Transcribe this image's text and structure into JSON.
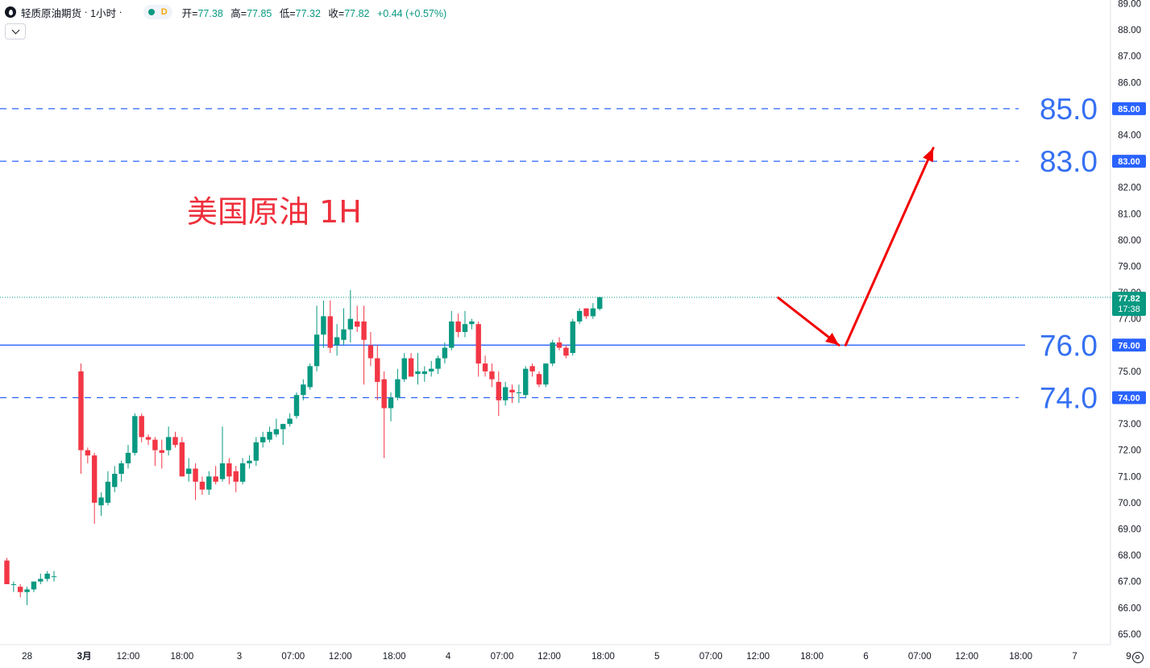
{
  "legend": {
    "symbol": "轻质原油期货",
    "interval": "1小时",
    "mode_label": "D",
    "open_label": "开=",
    "open_value": "77.38",
    "high_label": "高=",
    "high_value": "77.85",
    "low_label": "低=",
    "low_value": "77.32",
    "close_label": "收=",
    "close_value": "77.82",
    "change": "+0.44 (+0.57%)"
  },
  "colors": {
    "up": "#089981",
    "down": "#f23645",
    "level_line": "#2962ff",
    "level_text": "#3570f2",
    "annotation": "#ee2f3c",
    "arrow": "#f20000"
  },
  "icons": {
    "legend_toggle": "chevron-down-icon",
    "axis_settings": "settings-icon",
    "symbol": "oil-drop-icon"
  },
  "chart_data": {
    "type": "candlestick",
    "annotation": "美国原油 1H",
    "y_axis": {
      "ticks": [
        "65.00",
        "66.00",
        "67.00",
        "68.00",
        "69.00",
        "70.00",
        "71.00",
        "72.00",
        "73.00",
        "74.00",
        "75.00",
        "76.00",
        "77.00",
        "78.00",
        "79.00",
        "80.00",
        "81.00",
        "82.00",
        "83.00",
        "84.00",
        "85.00",
        "86.00",
        "87.00",
        "88.00",
        "89.00"
      ],
      "range": [
        64.6,
        89.1
      ]
    },
    "x_axis": {
      "ticks": [
        {
          "label": "28",
          "idx": 3
        },
        {
          "label": "3月",
          "idx": 11.5,
          "bold": true
        },
        {
          "label": "12:00",
          "idx": 18
        },
        {
          "label": "18:00",
          "idx": 26
        },
        {
          "label": "3",
          "idx": 34.5
        },
        {
          "label": "07:00",
          "idx": 42.5
        },
        {
          "label": "12:00",
          "idx": 49.5
        },
        {
          "label": "18:00",
          "idx": 57.5
        },
        {
          "label": "4",
          "idx": 65.5
        },
        {
          "label": "07:00",
          "idx": 73.5
        },
        {
          "label": "12:00",
          "idx": 80.5
        },
        {
          "label": "18:00",
          "idx": 88.5
        },
        {
          "label": "5",
          "idx": 96.5
        },
        {
          "label": "07:00",
          "idx": 104.5
        },
        {
          "label": "12:00",
          "idx": 111.5
        },
        {
          "label": "18:00",
          "idx": 119.5
        },
        {
          "label": "6",
          "idx": 127.5
        },
        {
          "label": "07:00",
          "idx": 135.5
        },
        {
          "label": "12:00",
          "idx": 142.5
        },
        {
          "label": "18:00",
          "idx": 150.5
        },
        {
          "label": "7",
          "idx": 158.5
        },
        {
          "label": "9",
          "idx": 166.5
        }
      ]
    },
    "levels": [
      {
        "value": 85.0,
        "label": "85.0",
        "tag": "85.00",
        "style": "dashed"
      },
      {
        "value": 83.0,
        "label": "83.0",
        "tag": "83.00",
        "style": "dashed"
      },
      {
        "value": 76.0,
        "label": "76.0",
        "tag": "76.00",
        "style": "solid"
      },
      {
        "value": 74.0,
        "label": "74.0",
        "tag": "74.00",
        "style": "dashed"
      }
    ],
    "last_price": {
      "value": 77.82,
      "label": "77.82",
      "countdown": "17:38"
    },
    "arrows": [
      {
        "from": [
          114.5,
          77.8
        ],
        "to": [
          123.5,
          76.0
        ]
      },
      {
        "from": [
          124.5,
          76.0
        ],
        "to": [
          137.5,
          83.5
        ]
      }
    ],
    "candles": [
      {
        "i": 0,
        "o": 67.8,
        "h": 67.9,
        "l": 66.9,
        "c": 66.9
      },
      {
        "i": 1,
        "o": 66.9,
        "h": 67.0,
        "l": 66.6,
        "c": 66.9
      },
      {
        "i": 2,
        "o": 66.8,
        "h": 66.9,
        "l": 66.4,
        "c": 66.6
      },
      {
        "i": 3,
        "o": 66.6,
        "h": 66.8,
        "l": 66.1,
        "c": 66.7
      },
      {
        "i": 4,
        "o": 66.7,
        "h": 67.0,
        "l": 66.6,
        "c": 67.0
      },
      {
        "i": 5,
        "o": 67.0,
        "h": 67.3,
        "l": 66.9,
        "c": 67.1
      },
      {
        "i": 6,
        "o": 67.1,
        "h": 67.4,
        "l": 67.0,
        "c": 67.3
      },
      {
        "i": 7,
        "o": 67.2,
        "h": 67.4,
        "l": 67.0,
        "c": 67.2
      },
      {
        "i": 11,
        "o": 75.0,
        "h": 75.3,
        "l": 71.1,
        "c": 72.0
      },
      {
        "i": 12,
        "o": 72.0,
        "h": 72.1,
        "l": 71.5,
        "c": 71.8
      },
      {
        "i": 13,
        "o": 71.8,
        "h": 71.9,
        "l": 69.2,
        "c": 70.0
      },
      {
        "i": 14,
        "o": 69.9,
        "h": 70.4,
        "l": 69.5,
        "c": 70.2
      },
      {
        "i": 15,
        "o": 70.0,
        "h": 71.2,
        "l": 69.9,
        "c": 70.8
      },
      {
        "i": 16,
        "o": 70.6,
        "h": 71.4,
        "l": 70.4,
        "c": 71.1
      },
      {
        "i": 17,
        "o": 71.1,
        "h": 71.6,
        "l": 70.8,
        "c": 71.5
      },
      {
        "i": 18,
        "o": 71.5,
        "h": 72.2,
        "l": 71.3,
        "c": 71.9
      },
      {
        "i": 19,
        "o": 71.9,
        "h": 73.4,
        "l": 71.8,
        "c": 73.3
      },
      {
        "i": 20,
        "o": 73.3,
        "h": 73.4,
        "l": 72.3,
        "c": 72.5
      },
      {
        "i": 21,
        "o": 72.5,
        "h": 72.6,
        "l": 72.2,
        "c": 72.4
      },
      {
        "i": 22,
        "o": 72.4,
        "h": 72.5,
        "l": 71.4,
        "c": 72.0
      },
      {
        "i": 23,
        "o": 72.0,
        "h": 72.4,
        "l": 71.3,
        "c": 71.9
      },
      {
        "i": 24,
        "o": 72.0,
        "h": 72.9,
        "l": 71.8,
        "c": 72.5
      },
      {
        "i": 25,
        "o": 72.5,
        "h": 72.7,
        "l": 72.1,
        "c": 72.2
      },
      {
        "i": 26,
        "o": 72.3,
        "h": 72.5,
        "l": 71.1,
        "c": 71.0
      },
      {
        "i": 27,
        "o": 71.1,
        "h": 71.7,
        "l": 70.8,
        "c": 71.3
      },
      {
        "i": 28,
        "o": 71.3,
        "h": 71.5,
        "l": 70.1,
        "c": 70.8
      },
      {
        "i": 29,
        "o": 70.8,
        "h": 71.0,
        "l": 70.3,
        "c": 70.5
      },
      {
        "i": 30,
        "o": 70.5,
        "h": 71.2,
        "l": 70.3,
        "c": 71.0
      },
      {
        "i": 31,
        "o": 71.0,
        "h": 71.4,
        "l": 70.7,
        "c": 70.8
      },
      {
        "i": 32,
        "o": 70.9,
        "h": 72.9,
        "l": 70.8,
        "c": 71.5
      },
      {
        "i": 33,
        "o": 71.5,
        "h": 71.7,
        "l": 70.7,
        "c": 71.0
      },
      {
        "i": 34,
        "o": 71.2,
        "h": 71.4,
        "l": 70.4,
        "c": 70.8
      },
      {
        "i": 35,
        "o": 70.8,
        "h": 71.7,
        "l": 70.7,
        "c": 71.5
      },
      {
        "i": 36,
        "o": 71.5,
        "h": 71.8,
        "l": 71.3,
        "c": 71.6
      },
      {
        "i": 37,
        "o": 71.6,
        "h": 72.5,
        "l": 71.4,
        "c": 72.3
      },
      {
        "i": 38,
        "o": 72.3,
        "h": 72.7,
        "l": 72.1,
        "c": 72.5
      },
      {
        "i": 39,
        "o": 72.4,
        "h": 72.9,
        "l": 72.3,
        "c": 72.7
      },
      {
        "i": 40,
        "o": 72.6,
        "h": 73.2,
        "l": 72.5,
        "c": 72.8
      },
      {
        "i": 41,
        "o": 72.8,
        "h": 73.0,
        "l": 72.2,
        "c": 73.0
      },
      {
        "i": 42,
        "o": 73.0,
        "h": 73.4,
        "l": 72.9,
        "c": 73.2
      },
      {
        "i": 43,
        "o": 73.3,
        "h": 74.2,
        "l": 73.2,
        "c": 74.1
      },
      {
        "i": 44,
        "o": 74.1,
        "h": 74.7,
        "l": 73.9,
        "c": 74.5
      },
      {
        "i": 45,
        "o": 74.4,
        "h": 75.3,
        "l": 74.3,
        "c": 75.2
      },
      {
        "i": 46,
        "o": 75.2,
        "h": 77.5,
        "l": 75.0,
        "c": 76.4
      },
      {
        "i": 47,
        "o": 76.4,
        "h": 77.7,
        "l": 75.9,
        "c": 77.1
      },
      {
        "i": 48,
        "o": 77.1,
        "h": 77.7,
        "l": 75.7,
        "c": 75.9
      },
      {
        "i": 49,
        "o": 76.0,
        "h": 76.8,
        "l": 75.6,
        "c": 76.3
      },
      {
        "i": 50,
        "o": 76.2,
        "h": 77.4,
        "l": 76.0,
        "c": 76.6
      },
      {
        "i": 51,
        "o": 76.6,
        "h": 78.1,
        "l": 76.1,
        "c": 77.0
      },
      {
        "i": 52,
        "o": 76.9,
        "h": 77.5,
        "l": 76.5,
        "c": 76.7
      },
      {
        "i": 53,
        "o": 76.9,
        "h": 77.5,
        "l": 74.5,
        "c": 76.2
      },
      {
        "i": 54,
        "o": 76.0,
        "h": 76.5,
        "l": 75.2,
        "c": 75.5
      },
      {
        "i": 55,
        "o": 75.5,
        "h": 76.0,
        "l": 73.9,
        "c": 74.6
      },
      {
        "i": 56,
        "o": 74.7,
        "h": 75.0,
        "l": 71.7,
        "c": 73.6
      },
      {
        "i": 57,
        "o": 73.6,
        "h": 74.2,
        "l": 73.1,
        "c": 74.0
      },
      {
        "i": 58,
        "o": 74.0,
        "h": 75.1,
        "l": 73.9,
        "c": 74.7
      },
      {
        "i": 59,
        "o": 74.7,
        "h": 75.7,
        "l": 74.6,
        "c": 75.5
      },
      {
        "i": 60,
        "o": 75.5,
        "h": 75.7,
        "l": 74.9,
        "c": 74.8
      },
      {
        "i": 61,
        "o": 74.9,
        "h": 75.7,
        "l": 74.5,
        "c": 75.0
      },
      {
        "i": 62,
        "o": 74.9,
        "h": 75.2,
        "l": 74.6,
        "c": 75.0
      },
      {
        "i": 63,
        "o": 75.0,
        "h": 75.4,
        "l": 74.8,
        "c": 75.1
      },
      {
        "i": 64,
        "o": 75.1,
        "h": 75.6,
        "l": 74.9,
        "c": 75.5
      },
      {
        "i": 65,
        "o": 75.5,
        "h": 76.1,
        "l": 75.3,
        "c": 75.9
      },
      {
        "i": 66,
        "o": 75.9,
        "h": 77.3,
        "l": 75.8,
        "c": 76.9
      },
      {
        "i": 67,
        "o": 76.9,
        "h": 77.2,
        "l": 76.3,
        "c": 76.5
      },
      {
        "i": 68,
        "o": 76.5,
        "h": 77.3,
        "l": 76.3,
        "c": 76.8
      },
      {
        "i": 69,
        "o": 76.8,
        "h": 77.0,
        "l": 76.6,
        "c": 76.9
      },
      {
        "i": 70,
        "o": 76.8,
        "h": 76.9,
        "l": 74.8,
        "c": 75.3
      },
      {
        "i": 71,
        "o": 75.3,
        "h": 75.6,
        "l": 74.8,
        "c": 75.0
      },
      {
        "i": 72,
        "o": 75.0,
        "h": 75.3,
        "l": 74.4,
        "c": 74.7
      },
      {
        "i": 73,
        "o": 74.6,
        "h": 75.0,
        "l": 73.3,
        "c": 73.9
      },
      {
        "i": 74,
        "o": 73.9,
        "h": 74.6,
        "l": 73.7,
        "c": 74.4
      },
      {
        "i": 75,
        "o": 74.3,
        "h": 74.5,
        "l": 73.8,
        "c": 74.2
      },
      {
        "i": 76,
        "o": 74.2,
        "h": 74.5,
        "l": 73.8,
        "c": 74.2
      },
      {
        "i": 77,
        "o": 74.1,
        "h": 75.2,
        "l": 74.0,
        "c": 75.1
      },
      {
        "i": 78,
        "o": 75.2,
        "h": 75.3,
        "l": 74.8,
        "c": 75.0
      },
      {
        "i": 79,
        "o": 74.9,
        "h": 75.0,
        "l": 74.4,
        "c": 74.5
      },
      {
        "i": 80,
        "o": 74.5,
        "h": 75.3,
        "l": 74.4,
        "c": 75.3
      },
      {
        "i": 81,
        "o": 75.3,
        "h": 76.2,
        "l": 75.2,
        "c": 76.1
      },
      {
        "i": 82,
        "o": 76.1,
        "h": 76.3,
        "l": 75.8,
        "c": 75.9
      },
      {
        "i": 83,
        "o": 75.9,
        "h": 76.0,
        "l": 75.5,
        "c": 75.6
      },
      {
        "i": 84,
        "o": 75.7,
        "h": 77.0,
        "l": 75.6,
        "c": 76.9
      },
      {
        "i": 85,
        "o": 76.9,
        "h": 77.4,
        "l": 76.8,
        "c": 77.3
      },
      {
        "i": 86,
        "o": 77.4,
        "h": 77.4,
        "l": 77.0,
        "c": 77.1
      },
      {
        "i": 87,
        "o": 77.1,
        "h": 77.6,
        "l": 77.0,
        "c": 77.4
      },
      {
        "i": 88,
        "o": 77.38,
        "h": 77.85,
        "l": 77.32,
        "c": 77.82
      }
    ]
  }
}
